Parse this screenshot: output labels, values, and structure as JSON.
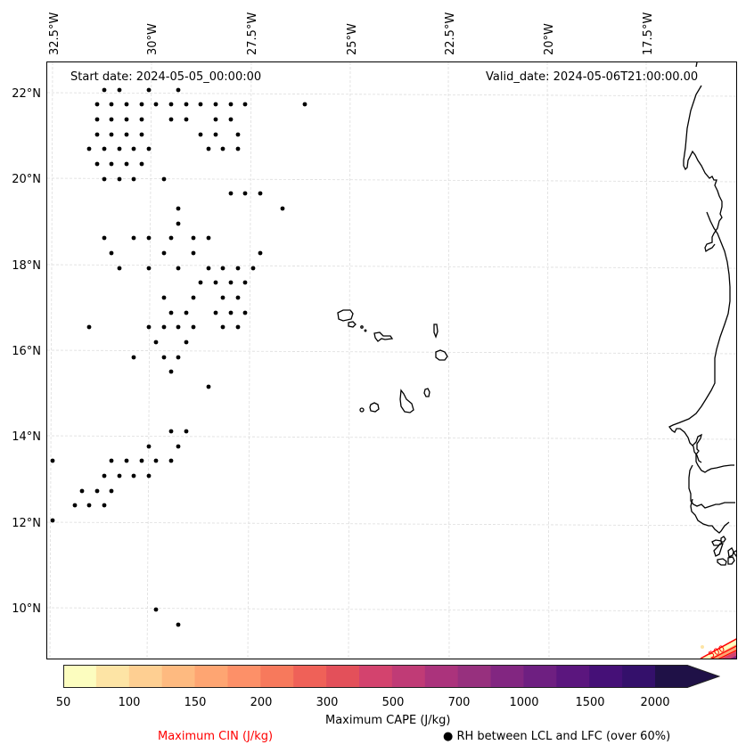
{
  "map": {
    "start_date": "Start date: 2024-05-05_00:00:00",
    "valid_date": "Valid_date: 2024-05-06T21:00:00.00",
    "lon_labels": [
      "32.5°W",
      "30°W",
      "27.5°W",
      "25°W",
      "22.5°W",
      "20°W",
      "17.5°W"
    ],
    "lat_labels": [
      "22°N",
      "20°N",
      "18°N",
      "16°N",
      "14°N",
      "12°N",
      "10°N"
    ],
    "extent": {
      "lon_min": -32.6,
      "lon_max": -16.3,
      "lat_min": 8.9,
      "lat_max": 22.8
    },
    "gridline_color": "#dddddd",
    "coastline_color": "#000000",
    "cin_contour_label": "500",
    "cin_contour_color": "#ff0000",
    "rh_marker_color": "#000000"
  },
  "colorbar": {
    "title": "Maximum CAPE (J/kg)",
    "tick_labels": [
      "50",
      "100",
      "150",
      "200",
      "300",
      "500",
      "700",
      "1000",
      "1500",
      "2000"
    ],
    "levels": [
      50,
      75,
      100,
      125,
      150,
      175,
      200,
      250,
      300,
      400,
      500,
      600,
      700,
      850,
      1000,
      1250,
      1500,
      1750,
      2000
    ],
    "colors": [
      "#fcfdbf",
      "#fde4a5",
      "#fecf92",
      "#feba80",
      "#fea572",
      "#fd9068",
      "#f7795c",
      "#ef6158",
      "#e3505a",
      "#d3436e",
      "#c03b76",
      "#ab337c",
      "#97307e",
      "#822681",
      "#6e1f81",
      "#5b167e",
      "#451077",
      "#34106b",
      "#1f1147"
    ],
    "extend": "max"
  },
  "legend": {
    "cin_label": "Maximum CIN (J/kg)",
    "cin_color": "#ff0000",
    "rh_marker": "●",
    "rh_label": "RH between LCL and LFC (over 60%)"
  }
}
